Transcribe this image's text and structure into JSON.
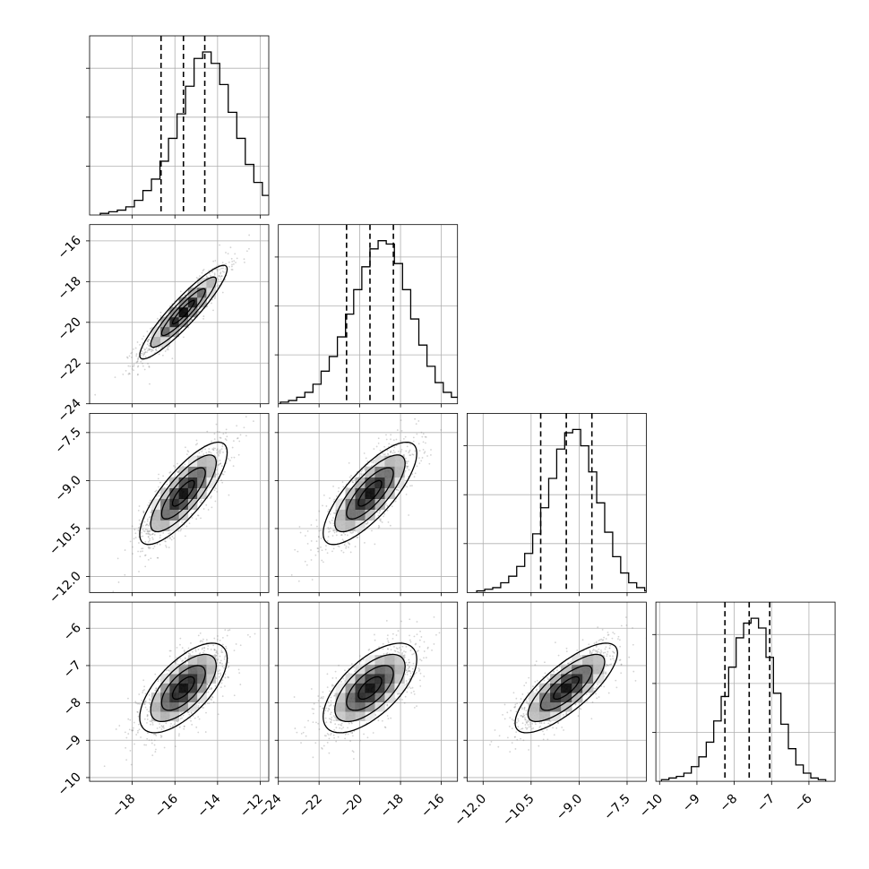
{
  "chart_data": {
    "type": "corner",
    "title": "",
    "parameters": [
      {
        "index": 0,
        "range": [
          -20.0,
          -11.6
        ],
        "median": -15.6,
        "quantile_16": -16.65,
        "quantile_84": -14.6,
        "axis_ticks": [
          -18,
          -16,
          -14,
          -12
        ],
        "axis_tick_labels": [
          "−18",
          "−16",
          "−14",
          "−12"
        ],
        "histogram": {
          "bin_start": -19.5,
          "bin_width": 0.4,
          "counts": [
            1,
            2,
            3,
            5,
            9,
            15,
            22,
            33,
            47,
            62,
            79,
            96,
            100,
            93,
            80,
            63,
            47,
            31,
            20,
            12,
            6,
            3,
            2,
            1
          ]
        }
      },
      {
        "index": 1,
        "range": [
          -24.0,
          -15.2
        ],
        "median": -19.5,
        "quantile_16": -20.65,
        "quantile_84": -18.35,
        "axis_ticks": [
          -24,
          -22,
          -20,
          -18,
          -16
        ],
        "axis_tick_labels": [
          "−24",
          "−22",
          "−20",
          "−18",
          "−16"
        ],
        "histogram": {
          "bin_start": -23.9,
          "bin_width": 0.4,
          "counts": [
            1,
            2,
            4,
            7,
            12,
            20,
            29,
            41,
            55,
            70,
            84,
            95,
            100,
            98,
            86,
            70,
            52,
            36,
            23,
            13,
            7,
            4,
            2,
            1
          ]
        }
      },
      {
        "index": 2,
        "range": [
          -12.5,
          -6.9
        ],
        "median": -9.4,
        "quantile_16": -10.2,
        "quantile_84": -8.6,
        "axis_ticks": [
          -12.0,
          -10.5,
          -9.0,
          -7.5
        ],
        "axis_tick_labels": [
          "−12.0",
          "−10.5",
          "−9.0",
          "−7.5"
        ],
        "histogram": {
          "bin_start": -12.2,
          "bin_width": 0.25,
          "counts": [
            1,
            2,
            3,
            6,
            10,
            16,
            24,
            36,
            52,
            70,
            88,
            98,
            100,
            90,
            74,
            55,
            37,
            22,
            12,
            6,
            3,
            1
          ]
        }
      },
      {
        "index": 3,
        "range": [
          -10.1,
          -5.3
        ],
        "median": -7.6,
        "quantile_16": -8.25,
        "quantile_84": -7.05,
        "axis_ticks": [
          -10,
          -9,
          -8,
          -7,
          -6
        ],
        "axis_tick_labels": [
          "−10",
          "−9",
          "−8",
          "−7",
          "−6"
        ],
        "histogram": {
          "bin_start": -9.95,
          "bin_width": 0.2,
          "counts": [
            1,
            2,
            3,
            5,
            9,
            15,
            24,
            37,
            52,
            70,
            88,
            97,
            100,
            94,
            76,
            54,
            35,
            20,
            10,
            5,
            2,
            1
          ]
        }
      }
    ],
    "correlations": {
      "1-0": 0.92,
      "2-0": 0.8,
      "2-1": 0.78,
      "3-0": 0.66,
      "3-1": 0.64,
      "3-2": 0.78
    },
    "contour_levels_sigma": [
      0.5,
      1.0,
      1.5,
      2.0
    ],
    "grid": true,
    "scatter_color": "#808080",
    "line_color": "#000000"
  }
}
